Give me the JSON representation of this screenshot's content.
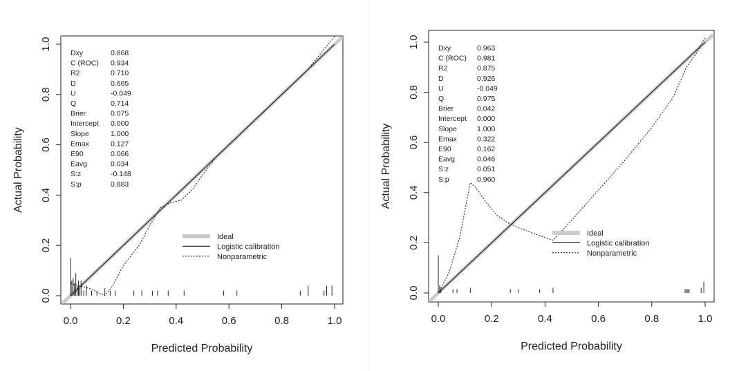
{
  "chart_data": [
    {
      "type": "line",
      "xlabel": "Predicted Probability",
      "ylabel": "Actual Probability",
      "xlim": [
        0,
        1
      ],
      "ylim": [
        0,
        1
      ],
      "x_ticks": [
        "0.0",
        "0.2",
        "0.4",
        "0.6",
        "0.8",
        "1.0"
      ],
      "y_ticks": [
        "0.0",
        "0.2",
        "0.4",
        "0.6",
        "0.8",
        "1.0"
      ],
      "legend": {
        "placement": "bottom-right",
        "entries": [
          "Ideal",
          "Logistic calibration",
          "Nonparametric"
        ]
      },
      "stats": [
        {
          "label": "Dxy",
          "value": "0.868"
        },
        {
          "label": "C (ROC)",
          "value": "0.934"
        },
        {
          "label": "R2",
          "value": "0.710"
        },
        {
          "label": "D",
          "value": "0.665"
        },
        {
          "label": "U",
          "value": "-0.049"
        },
        {
          "label": "Q",
          "value": "0.714"
        },
        {
          "label": "Brier",
          "value": "0.075"
        },
        {
          "label": "Intercept",
          "value": "0.000"
        },
        {
          "label": "Slope",
          "value": "1.000"
        },
        {
          "label": "Emax",
          "value": "0.127"
        },
        {
          "label": "E90",
          "value": "0.066"
        },
        {
          "label": "Eavg",
          "value": "0.034"
        },
        {
          "label": "S:z",
          "value": "-0.148"
        },
        {
          "label": "S:p",
          "value": "0.883"
        }
      ],
      "series": [
        {
          "name": "Ideal",
          "style": "thick-gray",
          "color": "#cccccc",
          "points": [
            [
              -0.03,
              -0.03
            ],
            [
              1.03,
              1.03
            ]
          ]
        },
        {
          "name": "Logistic calibration",
          "style": "solid",
          "color": "#222222",
          "points": [
            [
              0.0,
              0.0
            ],
            [
              0.2,
              0.2
            ],
            [
              0.4,
              0.4
            ],
            [
              0.6,
              0.6
            ],
            [
              0.8,
              0.8
            ],
            [
              1.0,
              1.0
            ]
          ]
        },
        {
          "name": "Nonparametric",
          "style": "dotted",
          "color": "#222222",
          "points": [
            [
              0.0,
              0.05
            ],
            [
              0.03,
              0.04
            ],
            [
              0.07,
              0.03
            ],
            [
              0.13,
              0.0
            ],
            [
              0.16,
              0.04
            ],
            [
              0.2,
              0.12
            ],
            [
              0.26,
              0.2
            ],
            [
              0.3,
              0.28
            ],
            [
              0.34,
              0.35
            ],
            [
              0.38,
              0.37
            ],
            [
              0.42,
              0.38
            ],
            [
              0.46,
              0.42
            ],
            [
              0.5,
              0.48
            ],
            [
              0.55,
              0.55
            ],
            [
              0.6,
              0.6
            ],
            [
              0.7,
              0.7
            ],
            [
              0.8,
              0.8
            ],
            [
              0.9,
              0.9
            ],
            [
              0.96,
              0.98
            ],
            [
              1.0,
              1.03
            ]
          ]
        }
      ],
      "rug": [
        {
          "x": 0.0,
          "h": 0.15
        },
        {
          "x": 0.005,
          "h": 0.06
        },
        {
          "x": 0.01,
          "h": 0.07
        },
        {
          "x": 0.015,
          "h": 0.05
        },
        {
          "x": 0.02,
          "h": 0.09
        },
        {
          "x": 0.025,
          "h": 0.04
        },
        {
          "x": 0.03,
          "h": 0.06
        },
        {
          "x": 0.035,
          "h": 0.03
        },
        {
          "x": 0.04,
          "h": 0.06
        },
        {
          "x": 0.05,
          "h": 0.02
        },
        {
          "x": 0.06,
          "h": 0.04
        },
        {
          "x": 0.08,
          "h": 0.02
        },
        {
          "x": 0.1,
          "h": 0.02
        },
        {
          "x": 0.13,
          "h": 0.03
        },
        {
          "x": 0.15,
          "h": 0.02
        },
        {
          "x": 0.17,
          "h": 0.02
        },
        {
          "x": 0.24,
          "h": 0.02
        },
        {
          "x": 0.27,
          "h": 0.02
        },
        {
          "x": 0.31,
          "h": 0.02
        },
        {
          "x": 0.33,
          "h": 0.02
        },
        {
          "x": 0.37,
          "h": 0.02
        },
        {
          "x": 0.43,
          "h": 0.02
        },
        {
          "x": 0.58,
          "h": 0.02
        },
        {
          "x": 0.63,
          "h": 0.02
        },
        {
          "x": 0.87,
          "h": 0.02
        },
        {
          "x": 0.9,
          "h": 0.04
        },
        {
          "x": 0.96,
          "h": 0.02
        },
        {
          "x": 0.97,
          "h": 0.04
        },
        {
          "x": 0.99,
          "h": 0.04
        }
      ]
    },
    {
      "type": "line",
      "xlabel": "Predicted Probability",
      "ylabel": "Actual Probability",
      "xlim": [
        0,
        1
      ],
      "ylim": [
        0,
        1
      ],
      "x_ticks": [
        "0.0",
        "0.2",
        "0.4",
        "0.6",
        "0.8",
        "1.0"
      ],
      "y_ticks": [
        "0.0",
        "0.2",
        "0.4",
        "0.6",
        "0.8",
        "1.0"
      ],
      "legend": {
        "placement": "bottom-right",
        "entries": [
          "Ideal",
          "Logistic calibration",
          "Nonparametric"
        ]
      },
      "stats": [
        {
          "label": "Dxy",
          "value": "0.963"
        },
        {
          "label": "C (ROC)",
          "value": "0.981"
        },
        {
          "label": "R2",
          "value": "0.875"
        },
        {
          "label": "D",
          "value": "0.926"
        },
        {
          "label": "U",
          "value": "-0.049"
        },
        {
          "label": "Q",
          "value": "0.975"
        },
        {
          "label": "Brier",
          "value": "0.042"
        },
        {
          "label": "Intercept",
          "value": "0.000"
        },
        {
          "label": "Slope",
          "value": "1.000"
        },
        {
          "label": "Emax",
          "value": "0.322"
        },
        {
          "label": "E90",
          "value": "0.162"
        },
        {
          "label": "Eavg",
          "value": "0.046"
        },
        {
          "label": "S:z",
          "value": "0.051"
        },
        {
          "label": "S:p",
          "value": "0.960"
        }
      ],
      "series": [
        {
          "name": "Ideal",
          "style": "thick-gray",
          "color": "#cccccc",
          "points": [
            [
              -0.03,
              -0.03
            ],
            [
              1.03,
              1.03
            ]
          ]
        },
        {
          "name": "Logistic calibration",
          "style": "solid",
          "color": "#222222",
          "points": [
            [
              0.0,
              0.0
            ],
            [
              0.2,
              0.2
            ],
            [
              0.4,
              0.4
            ],
            [
              0.6,
              0.6
            ],
            [
              0.8,
              0.8
            ],
            [
              1.0,
              1.0
            ]
          ]
        },
        {
          "name": "Nonparametric",
          "style": "dotted",
          "color": "#222222",
          "points": [
            [
              0.0,
              0.0
            ],
            [
              0.04,
              0.08
            ],
            [
              0.08,
              0.22
            ],
            [
              0.12,
              0.44
            ],
            [
              0.14,
              0.42
            ],
            [
              0.18,
              0.36
            ],
            [
              0.22,
              0.31
            ],
            [
              0.26,
              0.28
            ],
            [
              0.3,
              0.26
            ],
            [
              0.35,
              0.24
            ],
            [
              0.43,
              0.21
            ],
            [
              0.5,
              0.29
            ],
            [
              0.6,
              0.41
            ],
            [
              0.7,
              0.53
            ],
            [
              0.8,
              0.66
            ],
            [
              0.88,
              0.78
            ],
            [
              0.93,
              0.9
            ],
            [
              0.97,
              0.96
            ],
            [
              1.0,
              1.02
            ]
          ]
        }
      ],
      "rug": [
        {
          "x": 0.0,
          "h": 0.15
        },
        {
          "x": 0.005,
          "h": 0.03
        },
        {
          "x": 0.01,
          "h": 0.02
        },
        {
          "x": 0.055,
          "h": 0.015
        },
        {
          "x": 0.07,
          "h": 0.015
        },
        {
          "x": 0.12,
          "h": 0.02
        },
        {
          "x": 0.27,
          "h": 0.015
        },
        {
          "x": 0.3,
          "h": 0.015
        },
        {
          "x": 0.38,
          "h": 0.015
        },
        {
          "x": 0.43,
          "h": 0.02
        },
        {
          "x": 0.925,
          "h": 0.015
        },
        {
          "x": 0.93,
          "h": 0.015
        },
        {
          "x": 0.935,
          "h": 0.015
        },
        {
          "x": 0.94,
          "h": 0.015
        },
        {
          "x": 0.985,
          "h": 0.02
        },
        {
          "x": 0.995,
          "h": 0.045
        }
      ]
    }
  ]
}
